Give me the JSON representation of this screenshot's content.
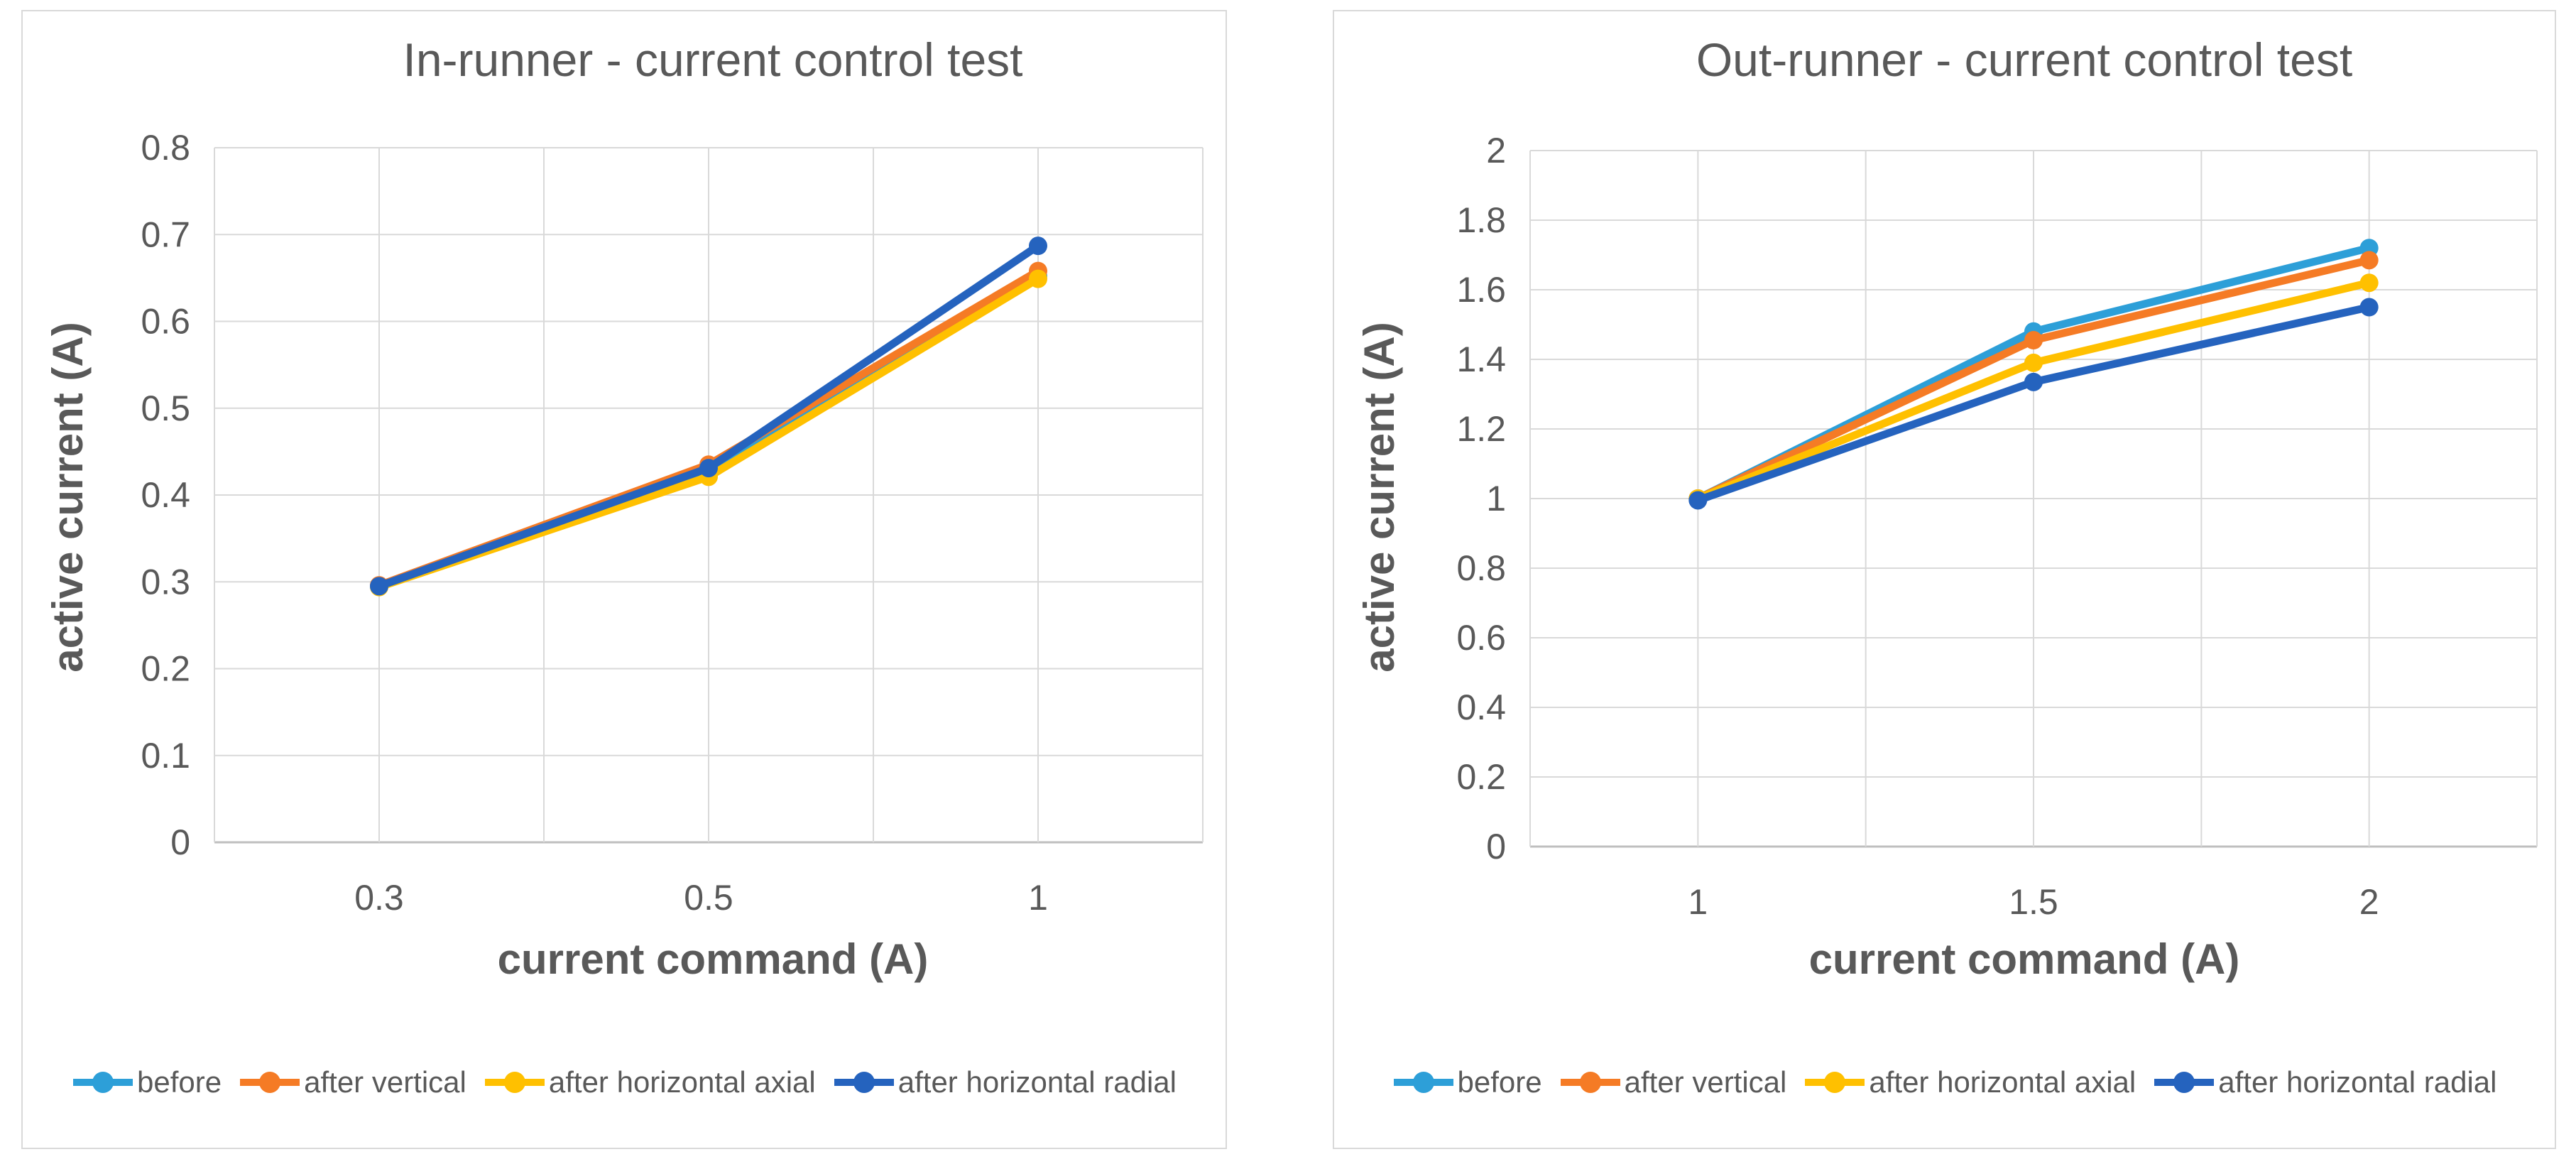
{
  "colors": {
    "background": "#FFFFFF",
    "panel_border": "#D9D9D9",
    "gridline": "#D9D9D9",
    "axis_line": "#BFBFBF",
    "title_text": "#595959",
    "axis_text": "#595959",
    "series_before": "#2D9FD8",
    "series_after_vertical": "#F57B25",
    "series_after_horizontal_axial": "#FFC000",
    "series_after_horizontal_radial": "#2563BE"
  },
  "chart_data": [
    {
      "type": "line",
      "title": "In-runner - current control test",
      "xlabel": "current command (A)",
      "ylabel": "active current (A)",
      "categories": [
        "0.3",
        "0.5",
        "1"
      ],
      "ylim": [
        0,
        0.8
      ],
      "yticks": [
        "0",
        "0.1",
        "0.2",
        "0.3",
        "0.4",
        "0.5",
        "0.6",
        "0.7",
        "0.8"
      ],
      "grid": true,
      "legend_position": "bottom",
      "series": [
        {
          "name": "before",
          "color": "#2D9FD8",
          "values": [
            0.295,
            0.43,
            0.652
          ]
        },
        {
          "name": "after vertical",
          "color": "#F57B25",
          "values": [
            0.296,
            0.435,
            0.658
          ]
        },
        {
          "name": "after horizontal axial",
          "color": "#FFC000",
          "values": [
            0.294,
            0.421,
            0.649
          ]
        },
        {
          "name": "after horizontal radial",
          "color": "#2563BE",
          "values": [
            0.295,
            0.431,
            0.687
          ]
        }
      ]
    },
    {
      "type": "line",
      "title": "Out-runner - current control test",
      "xlabel": "current command (A)",
      "ylabel": "active current (A)",
      "categories": [
        "1",
        "1.5",
        "2"
      ],
      "ylim": [
        0,
        2
      ],
      "yticks": [
        "0",
        "0.2",
        "0.4",
        "0.6",
        "0.8",
        "1",
        "1.2",
        "1.4",
        "1.6",
        "1.8",
        "2"
      ],
      "grid": true,
      "legend_position": "bottom",
      "series": [
        {
          "name": "before",
          "color": "#2D9FD8",
          "values": [
            1.0,
            1.48,
            1.72
          ]
        },
        {
          "name": "after vertical",
          "color": "#F57B25",
          "values": [
            1.0,
            1.455,
            1.685
          ]
        },
        {
          "name": "after horizontal axial",
          "color": "#FFC000",
          "values": [
            1.0,
            1.39,
            1.62
          ]
        },
        {
          "name": "after horizontal radial",
          "color": "#2563BE",
          "values": [
            0.995,
            1.335,
            1.55
          ]
        }
      ]
    }
  ]
}
